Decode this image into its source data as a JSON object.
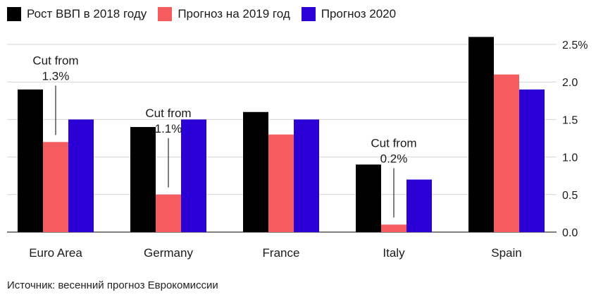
{
  "chart_data": {
    "type": "bar",
    "categories": [
      "Euro Area",
      "Germany",
      "France",
      "Italy",
      "Spain"
    ],
    "series": [
      {
        "name": "Рост ВВП в 2018 году",
        "color": "#000000",
        "values": [
          1.9,
          1.4,
          1.6,
          0.9,
          2.6
        ]
      },
      {
        "name": "Прогноз на 2019 год",
        "color": "#f45c5f",
        "values": [
          1.2,
          0.5,
          1.3,
          0.1,
          2.1
        ]
      },
      {
        "name": "Прогноз 2020",
        "color": "#2a00d6",
        "values": [
          1.5,
          1.5,
          1.5,
          0.7,
          1.9
        ]
      }
    ],
    "yaxis": {
      "ticks": [
        0,
        0.5,
        1.0,
        1.5,
        2.0,
        2.5
      ],
      "tick_labels": [
        "0.0",
        "0.5",
        "1.0",
        "1.5",
        "2.0",
        "2.5%"
      ],
      "ylim": [
        0,
        2.7
      ],
      "position": "right",
      "grid": true
    },
    "annotations": [
      {
        "category": "Euro Area",
        "series": 1,
        "line1": "Cut from",
        "line2": "1.3%"
      },
      {
        "category": "Germany",
        "series": 1,
        "line1": "Cut from",
        "line2": "1.1%"
      },
      {
        "category": "Italy",
        "series": 1,
        "line1": "Cut from",
        "line2": "0.2%"
      }
    ],
    "legend_position": "top-left"
  },
  "source": "Источник: весенний прогноз Еврокомиссии"
}
